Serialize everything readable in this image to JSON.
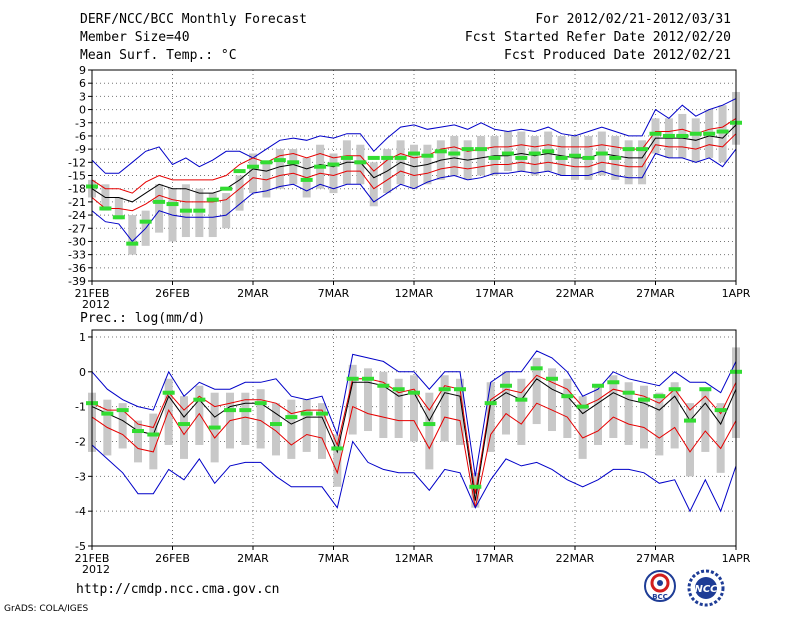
{
  "header": {
    "title": "DERF/NCC/BCC Monthly Forecast",
    "member_size": "Member Size=40",
    "variable1": "Mean Surf. Temp.: °C",
    "period": "For 2012/02/21-2012/03/31",
    "started": "Fcst Started Refer Date 2012/02/20",
    "produced": "Fcst Produced Date 2012/02/21"
  },
  "footer": {
    "url": "http://cmdp.ncc.cma.gov.cn",
    "credit": "GrADS: COLA/IGES",
    "logo1": "BCC",
    "logo2": "NCC"
  },
  "colors": {
    "blue": "#0000c8",
    "red": "#e60000",
    "green": "#32dc32",
    "box": "#c8c8c8",
    "grid": "#777777"
  },
  "chart_data": [
    {
      "type": "line",
      "title": "Mean Surf. Temp.: °C",
      "xlabel": "",
      "ylabel": "°C",
      "ylim": [
        -39,
        9
      ],
      "yticks": [
        9,
        6,
        3,
        0,
        -3,
        -6,
        -9,
        -12,
        -15,
        -18,
        -21,
        -24,
        -27,
        -30,
        -33,
        -36,
        -39
      ],
      "xticks": [
        "21FEB",
        "26FEB",
        "2MAR",
        "7MAR",
        "12MAR",
        "17MAR",
        "22MAR",
        "27MAR",
        "1APR"
      ],
      "xtick_sublabel": "2012",
      "days": 40,
      "series": [
        {
          "name": "ensemble max",
          "color": "blue",
          "values": [
            -11.5,
            -14.5,
            -14.5,
            -12,
            -9.5,
            -8.5,
            -12.5,
            -11,
            -13,
            -11.5,
            -9.5,
            -9.5,
            -11,
            -9,
            -7,
            -6.5,
            -7,
            -6,
            -6.5,
            -5.5,
            -5.5,
            -9.5,
            -6.5,
            -4,
            -3.5,
            -4.5,
            -4,
            -3.5,
            -4.5,
            -3,
            -4.5,
            -5,
            -4.5,
            -5,
            -4,
            -5.5,
            -6,
            -5,
            -4,
            -5,
            -6,
            -6,
            0,
            -2,
            1,
            -1.5,
            0,
            1,
            2.5
          ]
        },
        {
          "name": "upper",
          "color": "red",
          "values": [
            -16,
            -18,
            -18,
            -19,
            -16.5,
            -15,
            -16,
            -16,
            -16,
            -16,
            -15,
            -12.5,
            -11,
            -12,
            -10.5,
            -10,
            -11,
            -10,
            -11,
            -10.5,
            -10.5,
            -14,
            -11.5,
            -10,
            -11,
            -10.5,
            -9,
            -8.5,
            -9.5,
            -9,
            -8.5,
            -8.5,
            -8,
            -8.5,
            -8,
            -8.5,
            -8.5,
            -8.5,
            -8,
            -8.5,
            -9,
            -9,
            -5,
            -5,
            -4.5,
            -5.5,
            -4.5,
            -4,
            -2
          ]
        },
        {
          "name": "mean",
          "color": "black",
          "values": [
            -18,
            -20,
            -20,
            -21,
            -19,
            -17,
            -18,
            -18,
            -19,
            -19,
            -18,
            -16,
            -13.5,
            -14,
            -13,
            -12.5,
            -13.5,
            -12.5,
            -13,
            -12,
            -12,
            -15.5,
            -14,
            -12,
            -13,
            -12.5,
            -11.5,
            -11,
            -11.5,
            -11,
            -10.5,
            -10.5,
            -10,
            -10.5,
            -10,
            -10.5,
            -11,
            -11,
            -10,
            -10.5,
            -11,
            -11,
            -6.5,
            -6.5,
            -6.5,
            -7,
            -6,
            -6.5,
            -3.5
          ]
        },
        {
          "name": "lower",
          "color": "red",
          "values": [
            -20,
            -22.5,
            -22.5,
            -23,
            -21.5,
            -19.5,
            -20.5,
            -21,
            -21,
            -21,
            -20.5,
            -18,
            -15.5,
            -16,
            -15,
            -14.5,
            -15.5,
            -14.5,
            -15,
            -14,
            -14,
            -18,
            -16,
            -14,
            -15,
            -14.5,
            -13.5,
            -13,
            -13.5,
            -13,
            -12.5,
            -12.5,
            -12,
            -12.5,
            -12,
            -12.5,
            -13,
            -13,
            -12,
            -12.5,
            -13,
            -13,
            -8,
            -8.5,
            -8.5,
            -9,
            -8,
            -8.5,
            -5.5
          ]
        },
        {
          "name": "ensemble min",
          "color": "blue",
          "values": [
            -23,
            -25.5,
            -26,
            -30,
            -27,
            -23,
            -24,
            -24.5,
            -24.5,
            -24.5,
            -24,
            -21.5,
            -19,
            -18.5,
            -17.5,
            -17,
            -18.5,
            -17,
            -18,
            -17,
            -17,
            -21,
            -19,
            -17,
            -18,
            -16.5,
            -15.5,
            -15,
            -16,
            -15.5,
            -14.5,
            -14.5,
            -14,
            -14.5,
            -14,
            -15,
            -15,
            -15,
            -14,
            -15,
            -15.5,
            -15.5,
            -10,
            -11,
            -11,
            -12,
            -11,
            -13,
            -9
          ]
        }
      ],
      "boxes": [
        [
          -20,
          -16
        ],
        [
          -23,
          -17
        ],
        [
          -25,
          -20
        ],
        [
          -33,
          -24
        ],
        [
          -31,
          -23
        ],
        [
          -28,
          -17
        ],
        [
          -30,
          -18
        ],
        [
          -29,
          -17
        ],
        [
          -29,
          -18
        ],
        [
          -29,
          -19
        ],
        [
          -27,
          -19
        ],
        [
          -23,
          -15
        ],
        [
          -19,
          -10
        ],
        [
          -20,
          -12
        ],
        [
          -18,
          -9
        ],
        [
          -17,
          -9
        ],
        [
          -20,
          -11
        ],
        [
          -18,
          -8
        ],
        [
          -19,
          -10
        ],
        [
          -17,
          -7
        ],
        [
          -17,
          -8
        ],
        [
          -22,
          -12
        ],
        [
          -19,
          -9
        ],
        [
          -17,
          -7
        ],
        [
          -18,
          -8
        ],
        [
          -17,
          -8
        ],
        [
          -16,
          -7
        ],
        [
          -15,
          -6
        ],
        [
          -16,
          -7
        ],
        [
          -15,
          -6
        ],
        [
          -15,
          -6
        ],
        [
          -14,
          -5
        ],
        [
          -14,
          -5
        ],
        [
          -15,
          -6
        ],
        [
          -14,
          -5
        ],
        [
          -15,
          -6
        ],
        [
          -16,
          -6
        ],
        [
          -16,
          -6
        ],
        [
          -15,
          -5
        ],
        [
          -16,
          -6
        ],
        [
          -17,
          -7
        ],
        [
          -17,
          -7
        ],
        [
          -10,
          -2
        ],
        [
          -11,
          -2
        ],
        [
          -11,
          -1
        ],
        [
          -12,
          -2
        ],
        [
          -11,
          0
        ],
        [
          -12,
          1
        ],
        [
          -8,
          4
        ]
      ],
      "obs": [
        -17.5,
        -22.5,
        -24.5,
        -30.5,
        -25.5,
        -21,
        -21.5,
        -23,
        -23,
        -20.5,
        -18,
        -14,
        -13,
        -12,
        -11.5,
        -12,
        -16,
        -13,
        -12.5,
        -11,
        -12,
        -11,
        -11,
        -11,
        -10,
        -10.5,
        -9.5,
        -10,
        -9,
        -9,
        -11,
        -10,
        -11,
        -10,
        -9.5,
        -11,
        -10.5,
        -11,
        -10,
        -11,
        -9,
        -9,
        -5.5,
        -6,
        -6,
        -5.5,
        -5.5,
        -5,
        -3
      ]
    },
    {
      "type": "line",
      "title": "Prec.: log(mm/d)",
      "xlabel": "",
      "ylabel": "log(mm/d)",
      "ylim": [
        -5,
        1.2
      ],
      "yticks": [
        1,
        0,
        -1,
        -2,
        -3,
        -4,
        -5
      ],
      "xticks": [
        "21FEB",
        "26FEB",
        "2MAR",
        "7MAR",
        "12MAR",
        "17MAR",
        "22MAR",
        "27MAR",
        "1APR"
      ],
      "xtick_sublabel": "2012",
      "days": 40,
      "series": [
        {
          "name": "ensemble max",
          "color": "blue",
          "values": [
            0,
            -0.5,
            -0.8,
            -1,
            -1.1,
            0,
            -0.7,
            -0.3,
            -0.5,
            -0.5,
            -0.3,
            -0.3,
            -0.2,
            -0.7,
            -0.8,
            -0.7,
            -1.8,
            0.5,
            0.4,
            0.3,
            0,
            0,
            -0.5,
            0,
            0,
            -3,
            -0.3,
            0,
            0,
            0.6,
            0.4,
            0,
            -0.7,
            -0.5,
            0,
            -0.2,
            -0.3,
            -0.4,
            0,
            -0.3,
            -0.3,
            -0.6,
            0.3
          ]
        },
        {
          "name": "upper",
          "color": "red",
          "values": [
            -0.9,
            -1.1,
            -1.1,
            -1.5,
            -1.6,
            -0.6,
            -1.1,
            -0.7,
            -1,
            -0.9,
            -0.8,
            -0.8,
            -0.9,
            -1.2,
            -1.1,
            -1.1,
            -2.1,
            -0.2,
            -0.2,
            -0.3,
            -0.6,
            -0.5,
            -1.1,
            -0.4,
            -0.5,
            -3.5,
            -0.8,
            -0.5,
            -0.6,
            -0.1,
            -0.3,
            -0.5,
            -1,
            -0.8,
            -0.5,
            -0.6,
            -0.7,
            -0.9,
            -0.5,
            -1.1,
            -0.7,
            -1.2,
            -0.3
          ]
        },
        {
          "name": "mean",
          "color": "black",
          "values": [
            -1,
            -1.2,
            -1.4,
            -1.7,
            -1.8,
            -0.7,
            -1.3,
            -0.8,
            -1.3,
            -1,
            -0.9,
            -0.9,
            -1.2,
            -1.5,
            -1.3,
            -1.3,
            -2.3,
            -0.3,
            -0.3,
            -0.4,
            -0.7,
            -0.6,
            -1.4,
            -0.6,
            -0.7,
            -3.7,
            -0.9,
            -0.6,
            -0.8,
            -0.2,
            -0.5,
            -0.7,
            -1.2,
            -0.9,
            -0.6,
            -0.8,
            -0.9,
            -1.1,
            -0.7,
            -1.4,
            -0.9,
            -1.5,
            -0.5
          ]
        },
        {
          "name": "lower",
          "color": "red",
          "values": [
            -1.3,
            -1.6,
            -1.8,
            -2.2,
            -2.3,
            -1.1,
            -1.8,
            -1.2,
            -1.9,
            -1.4,
            -1.3,
            -1.4,
            -1.7,
            -2.1,
            -1.8,
            -1.9,
            -2.9,
            -1,
            -1.2,
            -1.3,
            -1.4,
            -1.4,
            -2.2,
            -1.3,
            -1.4,
            -3.9,
            -1.8,
            -1.2,
            -1.5,
            -0.9,
            -1.1,
            -1.3,
            -1.9,
            -1.7,
            -1.3,
            -1.5,
            -1.6,
            -1.9,
            -1.6,
            -2.3,
            -1.7,
            -2.2,
            -1.4
          ]
        },
        {
          "name": "ensemble min",
          "color": "blue",
          "values": [
            -2.1,
            -2.5,
            -2.9,
            -3.5,
            -3.5,
            -2.8,
            -3.1,
            -2.5,
            -3.2,
            -2.7,
            -2.6,
            -2.6,
            -3,
            -3.3,
            -3.3,
            -3.3,
            -3.9,
            -2,
            -2.6,
            -2.8,
            -2.9,
            -2.9,
            -3.4,
            -2.8,
            -2.9,
            -3.9,
            -3.1,
            -2.5,
            -2.7,
            -2.6,
            -2.8,
            -3.1,
            -3.3,
            -3.1,
            -2.8,
            -2.8,
            -2.9,
            -3.2,
            -3.1,
            -4,
            -3.1,
            -4,
            -2.7
          ]
        }
      ],
      "boxes": [
        [
          -2.3,
          -0.6
        ],
        [
          -2.4,
          -0.8
        ],
        [
          -2.2,
          -0.9
        ],
        [
          -2.6,
          -1.4
        ],
        [
          -2.8,
          -1.2
        ],
        [
          -2.1,
          -0.2
        ],
        [
          -2.5,
          -0.7
        ],
        [
          -2.1,
          -0.4
        ],
        [
          -2.6,
          -0.6
        ],
        [
          -2.2,
          -0.6
        ],
        [
          -2.1,
          -0.6
        ],
        [
          -2.2,
          -0.5
        ],
        [
          -2.4,
          -0.9
        ],
        [
          -2.5,
          -0.8
        ],
        [
          -2.3,
          -0.8
        ],
        [
          -2.5,
          -0.9
        ],
        [
          -3.3,
          -1.8
        ],
        [
          -1.8,
          0.2
        ],
        [
          -1.7,
          0.1
        ],
        [
          -1.9,
          0
        ],
        [
          -1.9,
          -0.2
        ],
        [
          -2,
          -0.1
        ],
        [
          -2.8,
          -0.6
        ],
        [
          -2,
          -0.1
        ],
        [
          -2.1,
          -0.2
        ],
        [
          -3.9,
          -2.9
        ],
        [
          -2.3,
          -0.3
        ],
        [
          -1.8,
          0
        ],
        [
          -2.1,
          -0.2
        ],
        [
          -1.5,
          0.4
        ],
        [
          -1.7,
          0.1
        ],
        [
          -1.9,
          -0.2
        ],
        [
          -2.5,
          -0.7
        ],
        [
          -2.1,
          -0.4
        ],
        [
          -1.9,
          -0.1
        ],
        [
          -2.1,
          -0.3
        ],
        [
          -2.2,
          -0.4
        ],
        [
          -2.4,
          -0.6
        ],
        [
          -2.2,
          -0.3
        ],
        [
          -3,
          -0.9
        ],
        [
          -2.3,
          -0.5
        ],
        [
          -2.9,
          -0.9
        ],
        [
          -1.9,
          0.7
        ]
      ],
      "obs": [
        -0.9,
        -1.2,
        -1.1,
        -1.7,
        -1.8,
        -0.6,
        -1.5,
        -0.8,
        -1.6,
        -1.1,
        -1.1,
        -0.9,
        -1.5,
        -1.3,
        -1.2,
        -1.2,
        -2.2,
        -0.2,
        -0.2,
        -0.4,
        -0.5,
        -0.6,
        -1.5,
        -0.5,
        -0.5,
        -3.3,
        -0.9,
        -0.4,
        -0.8,
        0.1,
        -0.2,
        -0.7,
        -1,
        -0.4,
        -0.3,
        -0.6,
        -0.8,
        -0.7,
        -0.5,
        -1.4,
        -0.5,
        -1.1,
        0
      ]
    }
  ]
}
